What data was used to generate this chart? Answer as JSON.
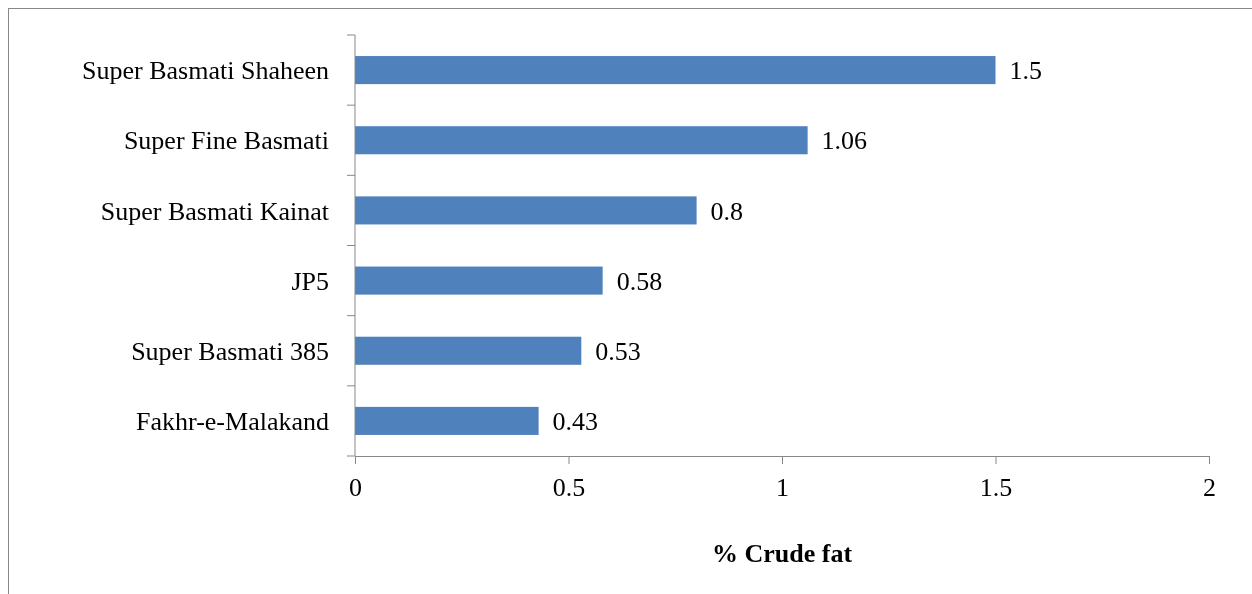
{
  "chart_data": {
    "type": "bar",
    "orientation": "horizontal",
    "xlabel": "% Crude fat",
    "categories": [
      "Super Basmati Shaheen",
      "Super Fine Basmati",
      "Super Basmati Kainat",
      "JP5",
      "Super Basmati 385",
      "Fakhr-e-Malakand"
    ],
    "values": [
      1.5,
      1.06,
      0.8,
      0.58,
      0.53,
      0.43
    ],
    "color": "#4f81bd",
    "xlim": [
      0,
      2
    ],
    "xticks": [
      0,
      0.5,
      1,
      1.5,
      2
    ],
    "data_labels": true,
    "grid": false
  }
}
